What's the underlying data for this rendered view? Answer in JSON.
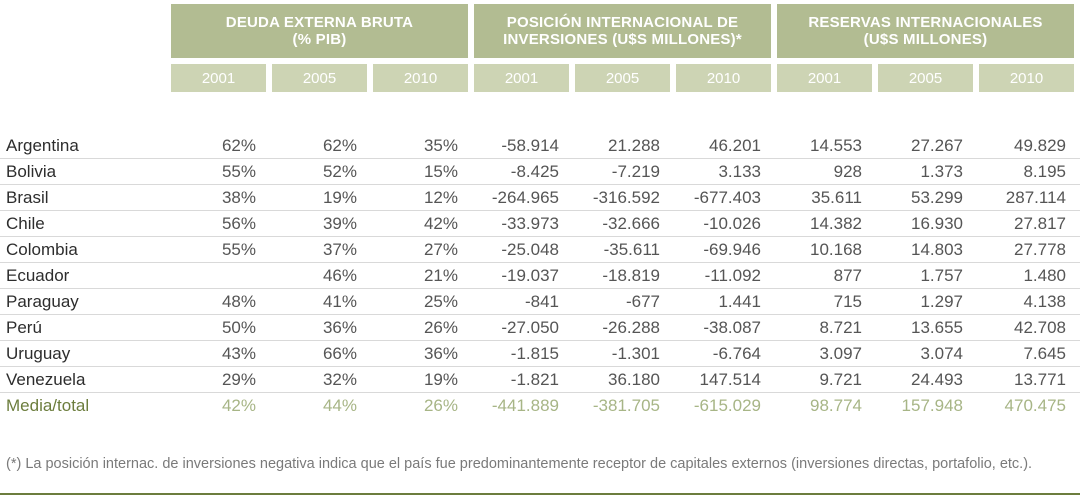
{
  "header": {
    "groups": [
      {
        "title": "DEUDA EXTERNA BRUTA",
        "subtitle": "(% PIB)"
      },
      {
        "title": "POSICIÓN INTERNACIONAL DE",
        "subtitle": "INVERSIONES (U$S MILLONES)*"
      },
      {
        "title": "RESERVAS INTERNACIONALES",
        "subtitle": "(U$S MILLONES)"
      }
    ],
    "years": [
      "2001",
      "2005",
      "2010",
      "2001",
      "2005",
      "2010",
      "2001",
      "2005",
      "2010"
    ]
  },
  "rows": [
    {
      "country": "Argentina",
      "values": [
        "62%",
        "62%",
        "35%",
        "-58.914",
        "21.288",
        "46.201",
        "14.553",
        "27.267",
        "49.829"
      ]
    },
    {
      "country": "Bolivia",
      "values": [
        "55%",
        "52%",
        "15%",
        "-8.425",
        "-7.219",
        "3.133",
        "928",
        "1.373",
        "8.195"
      ]
    },
    {
      "country": "Brasil",
      "values": [
        "38%",
        "19%",
        "12%",
        "-264.965",
        "-316.592",
        "-677.403",
        "35.611",
        "53.299",
        "287.114"
      ]
    },
    {
      "country": "Chile",
      "values": [
        "56%",
        "39%",
        "42%",
        "-33.973",
        "-32.666",
        "-10.026",
        "14.382",
        "16.930",
        "27.817"
      ]
    },
    {
      "country": "Colombia",
      "values": [
        "55%",
        "37%",
        "27%",
        "-25.048",
        "-35.611",
        "-69.946",
        "10.168",
        "14.803",
        "27.778"
      ]
    },
    {
      "country": "Ecuador",
      "values": [
        "",
        "46%",
        "21%",
        "-19.037",
        "-18.819",
        "-11.092",
        "877",
        "1.757",
        "1.480"
      ]
    },
    {
      "country": "Paraguay",
      "values": [
        "48%",
        "41%",
        "25%",
        "-841",
        "-677",
        "1.441",
        "715",
        "1.297",
        "4.138"
      ]
    },
    {
      "country": "Perú",
      "values": [
        "50%",
        "36%",
        "26%",
        "-27.050",
        "-26.288",
        "-38.087",
        "8.721",
        "13.655",
        "42.708"
      ]
    },
    {
      "country": "Uruguay",
      "values": [
        "43%",
        "66%",
        "36%",
        "-1.815",
        "-1.301",
        "-6.764",
        "3.097",
        "3.074",
        "7.645"
      ]
    },
    {
      "country": "Venezuela",
      "values": [
        "29%",
        "32%",
        "19%",
        "-1.821",
        "36.180",
        "147.514",
        "9.721",
        "24.493",
        "13.771"
      ]
    }
  ],
  "total": {
    "country": "Media/total",
    "values": [
      "42%",
      "44%",
      "26%",
      "-441.889",
      "-381.705",
      "-615.029",
      "98.774",
      "157.948",
      "470.475"
    ]
  },
  "footnote": "(*) La posición internac. de inversiones negativa indica que el país fue predominantemente receptor de capitales externos (inversiones directas, portafolio, etc.).",
  "colors": {
    "header_dark": "#b2bc92",
    "header_light": "#cdd4b4",
    "total_text": "#a7b586",
    "accent": "#6c7d3d"
  }
}
